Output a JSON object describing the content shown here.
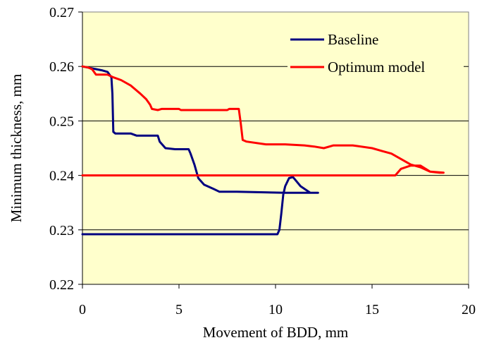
{
  "chart_data": {
    "type": "line",
    "title": "",
    "xlabel": "Movement of BDD, mm",
    "ylabel": "Minimum thickness, mm",
    "xlim": [
      0,
      20
    ],
    "ylim": [
      0.22,
      0.27
    ],
    "xticks": [
      0,
      5,
      10,
      15,
      20
    ],
    "yticks": [
      0.22,
      0.23,
      0.24,
      0.25,
      0.26,
      0.27
    ],
    "xtick_labels": [
      "0",
      "5",
      "10",
      "15",
      "20"
    ],
    "ytick_labels": [
      "0.22",
      "0.23",
      "0.24",
      "0.25",
      "0.26",
      "0.27"
    ],
    "grid": "horizontal",
    "plot_background": "#ffffcc",
    "legend_position": "top-right",
    "series": [
      {
        "name": "Baseline",
        "color": "#000080",
        "points": [
          [
            0.0,
            0.26
          ],
          [
            1.0,
            0.2593
          ],
          [
            1.3,
            0.259
          ],
          [
            1.5,
            0.258
          ],
          [
            1.55,
            0.255
          ],
          [
            1.6,
            0.248
          ],
          [
            1.7,
            0.2477
          ],
          [
            2.5,
            0.2477
          ],
          [
            2.8,
            0.2473
          ],
          [
            3.2,
            0.2473
          ],
          [
            3.9,
            0.2473
          ],
          [
            4.0,
            0.2462
          ],
          [
            4.3,
            0.245
          ],
          [
            4.8,
            0.2448
          ],
          [
            5.5,
            0.2448
          ],
          [
            5.6,
            0.244
          ],
          [
            5.8,
            0.242
          ],
          [
            6.0,
            0.2395
          ],
          [
            6.3,
            0.2383
          ],
          [
            6.8,
            0.2375
          ],
          [
            7.1,
            0.237
          ],
          [
            7.5,
            0.237
          ],
          [
            8.0,
            0.237
          ],
          [
            10.5,
            0.2368
          ],
          [
            12.2,
            0.2368
          ],
          [
            11.8,
            0.2368
          ],
          [
            11.3,
            0.238
          ],
          [
            10.9,
            0.2397
          ],
          [
            10.7,
            0.2395
          ],
          [
            10.5,
            0.238
          ],
          [
            10.4,
            0.2365
          ],
          [
            10.3,
            0.233
          ],
          [
            10.2,
            0.23
          ],
          [
            10.1,
            0.2292
          ],
          [
            5.0,
            0.2292
          ],
          [
            0.0,
            0.2292
          ]
        ]
      },
      {
        "name": "Optimum model",
        "color": "#ff0000",
        "points": [
          [
            0.0,
            0.26
          ],
          [
            0.3,
            0.2598
          ],
          [
            0.5,
            0.2595
          ],
          [
            0.7,
            0.2585
          ],
          [
            1.3,
            0.2585
          ],
          [
            1.6,
            0.258
          ],
          [
            2.0,
            0.2575
          ],
          [
            2.5,
            0.2565
          ],
          [
            3.0,
            0.255
          ],
          [
            3.3,
            0.254
          ],
          [
            3.5,
            0.253
          ],
          [
            3.6,
            0.2522
          ],
          [
            3.9,
            0.252
          ],
          [
            4.1,
            0.2522
          ],
          [
            5.0,
            0.2522
          ],
          [
            5.1,
            0.252
          ],
          [
            6.0,
            0.252
          ],
          [
            7.5,
            0.252
          ],
          [
            7.6,
            0.2522
          ],
          [
            8.1,
            0.2522
          ],
          [
            8.2,
            0.2495
          ],
          [
            8.3,
            0.2465
          ],
          [
            8.5,
            0.2462
          ],
          [
            9.5,
            0.2457
          ],
          [
            10.5,
            0.2457
          ],
          [
            11.5,
            0.2455
          ],
          [
            12.0,
            0.2453
          ],
          [
            12.5,
            0.245
          ],
          [
            13.0,
            0.2455
          ],
          [
            14.0,
            0.2455
          ],
          [
            15.0,
            0.245
          ],
          [
            15.5,
            0.2445
          ],
          [
            16.0,
            0.244
          ],
          [
            16.5,
            0.243
          ],
          [
            17.0,
            0.242
          ],
          [
            17.5,
            0.2415
          ],
          [
            18.0,
            0.2407
          ],
          [
            18.7,
            0.2405
          ],
          [
            18.5,
            0.2405
          ],
          [
            18.0,
            0.2407
          ],
          [
            17.5,
            0.2418
          ],
          [
            17.0,
            0.2418
          ],
          [
            16.5,
            0.2412
          ],
          [
            16.2,
            0.24
          ],
          [
            14.0,
            0.24
          ],
          [
            8.0,
            0.24
          ],
          [
            0.0,
            0.24
          ]
        ]
      }
    ]
  }
}
